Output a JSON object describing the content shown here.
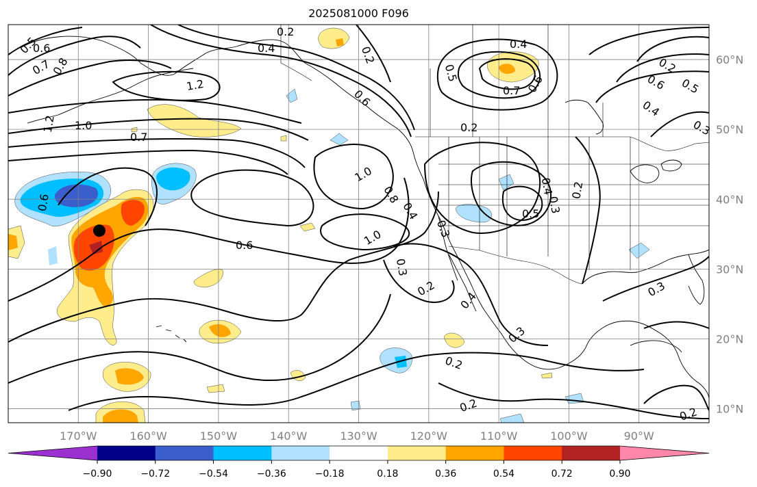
{
  "title": "2025081000 F096",
  "map": {
    "lon_range": [
      -180,
      -80
    ],
    "lat_range": [
      8,
      65
    ],
    "lon_ticks": [
      -170,
      -160,
      -150,
      -140,
      -130,
      -120,
      -110,
      -100,
      -90
    ],
    "lat_ticks": [
      10,
      20,
      30,
      40,
      50,
      60
    ],
    "lon_tick_labels": [
      "170°W",
      "160°W",
      "150°W",
      "140°W",
      "130°W",
      "120°W",
      "110°W",
      "100°W",
      "90°W"
    ],
    "lat_tick_labels": [
      "10°N",
      "20°N",
      "30°N",
      "40°N",
      "50°N",
      "60°N"
    ],
    "grid": true,
    "marker": {
      "lon": -167,
      "lat": 35.5,
      "symbol": "filled-circle"
    }
  },
  "colorbar": {
    "orientation": "horizontal",
    "extend": "both",
    "boundaries": [
      -0.9,
      -0.72,
      -0.54,
      -0.36,
      -0.18,
      0.18,
      0.36,
      0.54,
      0.72,
      0.9
    ],
    "tick_labels": [
      "−0.90",
      "−0.72",
      "−0.54",
      "−0.36",
      "−0.18",
      "0.18",
      "0.36",
      "0.54",
      "0.72",
      "0.90"
    ],
    "colors": [
      "#9b30d0",
      "#00008b",
      "#3a5fcd",
      "#00bfff",
      "#b0e2ff",
      "#ffffff",
      "#ffec8b",
      "#ffa500",
      "#ff4500",
      "#b22222",
      "#ff88aa"
    ]
  },
  "contour_labels": [
    "0.5",
    "0.6",
    "0.7",
    "0.8",
    "1.2",
    "1.0",
    "0.7",
    "0.6",
    "0.6",
    "0.2",
    "0.4",
    "0.2",
    "1.2",
    "1.0",
    "0.6",
    "1.0",
    "0.8",
    "0.4",
    "0.4",
    "0.5",
    "0.7",
    "0.6",
    "0.2",
    "0.5",
    "0.3",
    "0.4",
    "0.2",
    "0.3",
    "0.3",
    "0.2",
    "0.4",
    "0.3",
    "0.2",
    "0.2",
    "0.3",
    "0.4",
    "0.6",
    "0.5",
    "0.3",
    "0.2",
    "0.2"
  ]
}
